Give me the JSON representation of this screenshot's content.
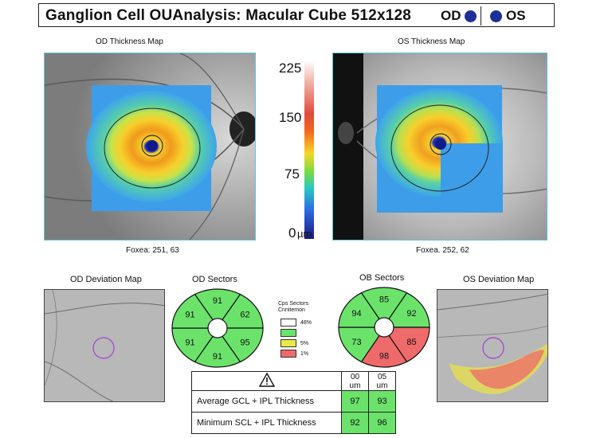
{
  "header": {
    "title": "Ganglion Cell OUAnalysis: Macular Cube 512x128",
    "od_label": "OD",
    "os_label": "OS",
    "od_dot_color": "#1f2f95",
    "os_dot_color": "#1f2f95"
  },
  "od_thickness": {
    "title": "OD Thickness Map",
    "fovea": "Foxea: 251, 63"
  },
  "os_thickness": {
    "title": "OS Thickness Map",
    "fovea": "Foxea. 252, 62"
  },
  "colorbar": {
    "ticks": [
      "225",
      "150",
      "75",
      "0"
    ],
    "unit": "µm"
  },
  "od_deviation": {
    "title": "OD Deviation Map"
  },
  "os_deviation": {
    "title": "OS Deviation Map"
  },
  "od_sectors": {
    "title": "OD Sectors",
    "values": {
      "top": "91",
      "top_right": "62",
      "bottom_right": "95",
      "bottom": "91",
      "bottom_left": "91",
      "top_left": "91"
    }
  },
  "os_sectors": {
    "title": "OB Sectors",
    "values": {
      "top": "85",
      "top_right": "92",
      "bottom_right": "85",
      "bottom": "98",
      "bottom_left": "73",
      "top_left": "94"
    }
  },
  "sector_colors": {
    "normal": "#6be36b",
    "borderline": "#e9e94a",
    "outside": "#ef6a6a",
    "supra": "#ffffff"
  },
  "legend": {
    "title_line1": "Cps Sectors",
    "title_line2": "Cnnitemon",
    "items": [
      {
        "label": "48%",
        "color": "#ffffff"
      },
      {
        "label": "5%",
        "color": "#e9e94a"
      },
      {
        "label": "1%",
        "color": "#ef6a6a"
      }
    ]
  },
  "summary_table": {
    "warning_icon": "warning-icon",
    "col_od": "00 um",
    "col_os": "05 um",
    "rows": [
      {
        "label": "Average GCL + IPL Thickness",
        "od": "97",
        "os": "93"
      },
      {
        "label": "Minimum SCL + IPL Thickness",
        "od": "92",
        "os": "96"
      }
    ]
  }
}
